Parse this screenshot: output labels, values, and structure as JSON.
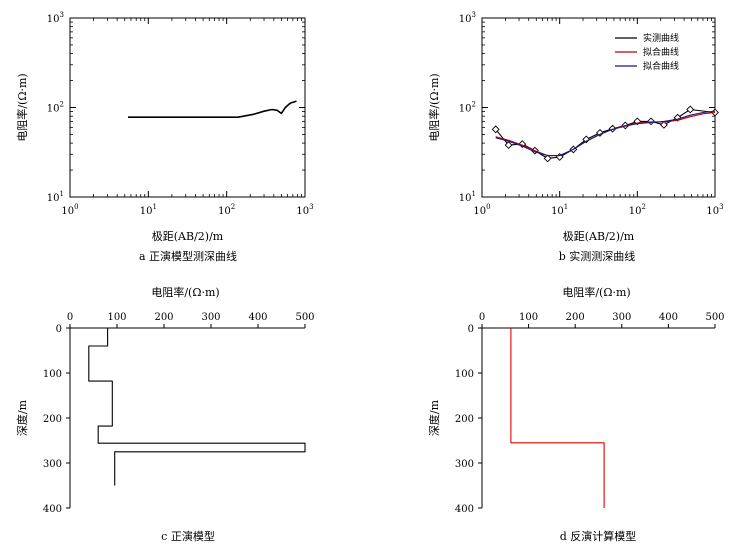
{
  "chart_data": [
    {
      "id": "a",
      "type": "line",
      "xscale": "log",
      "yscale": "log",
      "xlim": [
        1,
        1000
      ],
      "ylim": [
        10,
        1000
      ],
      "xticks": [
        {
          "v": 1,
          "m": "10",
          "e": "0"
        },
        {
          "v": 10,
          "m": "10",
          "e": "1"
        },
        {
          "v": 100,
          "m": "10",
          "e": "2"
        },
        {
          "v": 1000,
          "m": "10",
          "e": "3"
        }
      ],
      "yticks": [
        {
          "v": 10,
          "m": "10",
          "e": "1"
        },
        {
          "v": 100,
          "m": "10",
          "e": "2"
        },
        {
          "v": 1000,
          "m": "10",
          "e": "3"
        }
      ],
      "xlabel": "极距(AB/2)/m",
      "ylabel": "电阻率/(Ω·m)",
      "caption": "a  正演模型测深曲线",
      "series": [
        {
          "color": "#000000",
          "x": [
            5.5,
            10,
            30,
            70,
            140,
            220,
            300,
            380,
            440,
            500,
            560,
            650,
            780
          ],
          "y": [
            78,
            78,
            78,
            78,
            78,
            84,
            91,
            95,
            93,
            86,
            100,
            112,
            118
          ]
        }
      ]
    },
    {
      "id": "b",
      "type": "line",
      "xscale": "log",
      "yscale": "log",
      "xlim": [
        1,
        1000
      ],
      "ylim": [
        10,
        1000
      ],
      "xticks": [
        {
          "v": 1,
          "m": "10",
          "e": "0"
        },
        {
          "v": 10,
          "m": "10",
          "e": "1"
        },
        {
          "v": 100,
          "m": "10",
          "e": "2"
        },
        {
          "v": 1000,
          "m": "10",
          "e": "3"
        }
      ],
      "yticks": [
        {
          "v": 10,
          "m": "10",
          "e": "1"
        },
        {
          "v": 100,
          "m": "10",
          "e": "2"
        },
        {
          "v": 1000,
          "m": "10",
          "e": "3"
        }
      ],
      "xlabel": "极距(AB/2)/m",
      "ylabel": "电阻率/(Ω·m)",
      "caption": "b  实测测深曲线",
      "legend_position": "top-right",
      "series": [
        {
          "name": "实测曲线",
          "color": "#000000",
          "markers": true,
          "x": [
            1.5,
            2.2,
            3.3,
            4.8,
            7,
            10,
            15,
            22,
            33,
            48,
            70,
            100,
            150,
            220,
            330,
            480,
            1000
          ],
          "y": [
            57,
            38,
            39,
            33,
            27,
            28,
            34,
            44,
            52,
            58,
            63,
            70,
            70,
            64,
            77,
            95,
            88
          ]
        },
        {
          "name": "拟合曲线",
          "color": "#c00000",
          "x": [
            1.5,
            2.2,
            3.3,
            4.8,
            7,
            10,
            15,
            22,
            33,
            48,
            70,
            100,
            150,
            220,
            330,
            480,
            700,
            1000
          ],
          "y": [
            47,
            43,
            38,
            33,
            29,
            29,
            34,
            42,
            50,
            57,
            63,
            67,
            69,
            69,
            72,
            79,
            85,
            88
          ]
        },
        {
          "name": "拟合曲线",
          "color": "#1a1a80",
          "x": [
            1.5,
            2.2,
            3.3,
            4.8,
            7,
            10,
            15,
            22,
            33,
            48,
            70,
            100,
            150,
            220,
            330,
            480,
            700,
            1000
          ],
          "y": [
            46,
            42,
            37,
            32,
            29,
            29,
            34,
            42,
            50,
            57,
            62,
            66,
            68,
            70,
            74,
            82,
            88,
            91
          ]
        }
      ]
    },
    {
      "id": "c",
      "type": "line",
      "xscale": "linear",
      "yscale": "linear",
      "x_axis_position": "top",
      "y_inverted": true,
      "xlim": [
        0,
        500
      ],
      "ylim": [
        0,
        400
      ],
      "xticks": [
        0,
        100,
        200,
        300,
        400,
        500
      ],
      "yticks": [
        0,
        100,
        200,
        300,
        400
      ],
      "xlabel": "电阻率/(Ω·m)",
      "ylabel": "深度/m",
      "caption": "c  正演模型",
      "series": [
        {
          "color": "#000000",
          "x": [
            80,
            80,
            40,
            40,
            90,
            90,
            60,
            60,
            500,
            500,
            95,
            95
          ],
          "y": [
            0,
            40,
            40,
            118,
            118,
            218,
            218,
            256,
            256,
            275,
            275,
            350
          ]
        }
      ]
    },
    {
      "id": "d",
      "type": "line",
      "xscale": "linear",
      "yscale": "linear",
      "x_axis_position": "top",
      "y_inverted": true,
      "xlim": [
        0,
        500
      ],
      "ylim": [
        0,
        400
      ],
      "xticks": [
        0,
        100,
        200,
        300,
        400,
        500
      ],
      "yticks": [
        0,
        100,
        200,
        300,
        400
      ],
      "xlabel": "电阻率/(Ω·m)",
      "ylabel": "深度/m",
      "caption": "d  反演计算模型",
      "series": [
        {
          "color": "#e00000",
          "x": [
            62,
            62,
            262,
            262
          ],
          "y": [
            0,
            255,
            255,
            400
          ]
        }
      ]
    }
  ]
}
